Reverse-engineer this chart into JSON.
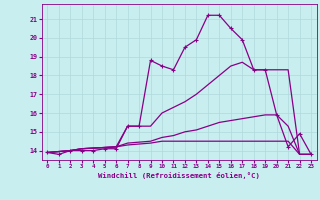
{
  "xlabel": "Windchill (Refroidissement éolien,°C)",
  "background_color": "#c8eef0",
  "grid_color": "#b0d8da",
  "line_color": "#880088",
  "xlim": [
    -0.5,
    23.5
  ],
  "ylim": [
    13.5,
    21.8
  ],
  "xticks": [
    0,
    1,
    2,
    3,
    4,
    5,
    6,
    7,
    8,
    9,
    10,
    11,
    12,
    13,
    14,
    15,
    16,
    17,
    18,
    19,
    20,
    21,
    22,
    23
  ],
  "yticks": [
    14,
    15,
    16,
    17,
    18,
    19,
    20,
    21
  ],
  "series": [
    {
      "x": [
        0,
        1,
        2,
        3,
        4,
        5,
        6,
        7,
        8,
        9,
        10,
        11,
        12,
        13,
        14,
        15,
        16,
        17,
        18,
        19,
        20,
        21,
        22,
        23
      ],
      "y": [
        13.9,
        13.8,
        14.0,
        14.0,
        14.0,
        14.1,
        14.1,
        15.3,
        15.3,
        18.8,
        18.5,
        18.3,
        19.5,
        19.9,
        21.2,
        21.2,
        20.5,
        19.9,
        18.3,
        18.3,
        15.9,
        14.2,
        14.9,
        13.8
      ],
      "marker": "+",
      "markersize": 3.5,
      "linewidth": 0.9,
      "linestyle": "-"
    },
    {
      "x": [
        0,
        2,
        3,
        6,
        7,
        9,
        10,
        11,
        12,
        13,
        14,
        15,
        16,
        17,
        18,
        19,
        20,
        21,
        22,
        23
      ],
      "y": [
        13.9,
        14.0,
        14.1,
        14.2,
        15.3,
        15.3,
        16.0,
        16.3,
        16.6,
        17.0,
        17.5,
        18.0,
        18.5,
        18.7,
        18.3,
        18.3,
        18.3,
        18.3,
        13.8,
        13.8
      ],
      "marker": null,
      "markersize": 0,
      "linewidth": 0.9,
      "linestyle": "-"
    },
    {
      "x": [
        0,
        2,
        3,
        6,
        7,
        9,
        10,
        11,
        12,
        13,
        14,
        15,
        16,
        17,
        18,
        19,
        20,
        21,
        22,
        23
      ],
      "y": [
        13.9,
        14.0,
        14.1,
        14.2,
        14.4,
        14.5,
        14.7,
        14.8,
        15.0,
        15.1,
        15.3,
        15.5,
        15.6,
        15.7,
        15.8,
        15.9,
        15.9,
        15.3,
        13.8,
        13.8
      ],
      "marker": null,
      "markersize": 0,
      "linewidth": 0.9,
      "linestyle": "-"
    },
    {
      "x": [
        0,
        2,
        3,
        6,
        7,
        9,
        10,
        11,
        12,
        13,
        14,
        15,
        16,
        17,
        18,
        19,
        20,
        21,
        22,
        23
      ],
      "y": [
        13.9,
        14.0,
        14.1,
        14.2,
        14.3,
        14.4,
        14.5,
        14.5,
        14.5,
        14.5,
        14.5,
        14.5,
        14.5,
        14.5,
        14.5,
        14.5,
        14.5,
        14.5,
        13.8,
        13.8
      ],
      "marker": null,
      "markersize": 0,
      "linewidth": 0.9,
      "linestyle": "-"
    }
  ]
}
